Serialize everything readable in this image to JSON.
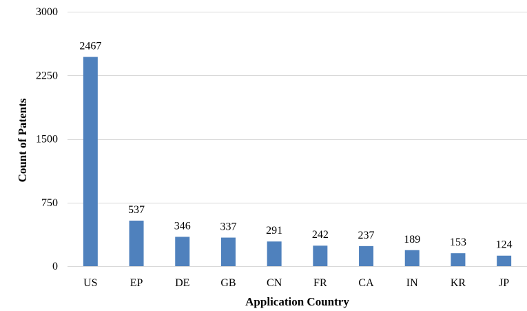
{
  "chart_data": {
    "type": "bar",
    "title": "",
    "xlabel": "Application Country",
    "ylabel": "Count of Patents",
    "categories": [
      "US",
      "EP",
      "DE",
      "GB",
      "CN",
      "FR",
      "CA",
      "IN",
      "KR",
      "JP"
    ],
    "values": [
      2467,
      537,
      346,
      337,
      291,
      242,
      237,
      189,
      153,
      124
    ],
    "data_labels": [
      "2467",
      "537",
      "346",
      "337",
      "291",
      "242",
      "237",
      "189",
      "153",
      "124"
    ],
    "ylim": [
      0,
      3000
    ],
    "yticks": [
      0,
      750,
      1500,
      2250,
      3000
    ],
    "ytick_labels": [
      "0",
      "750",
      "1500",
      "2250",
      "3000"
    ],
    "grid": true,
    "legend": "none",
    "colors": {
      "bar": "#4f81bd",
      "grid": "#d9d9d9"
    }
  }
}
